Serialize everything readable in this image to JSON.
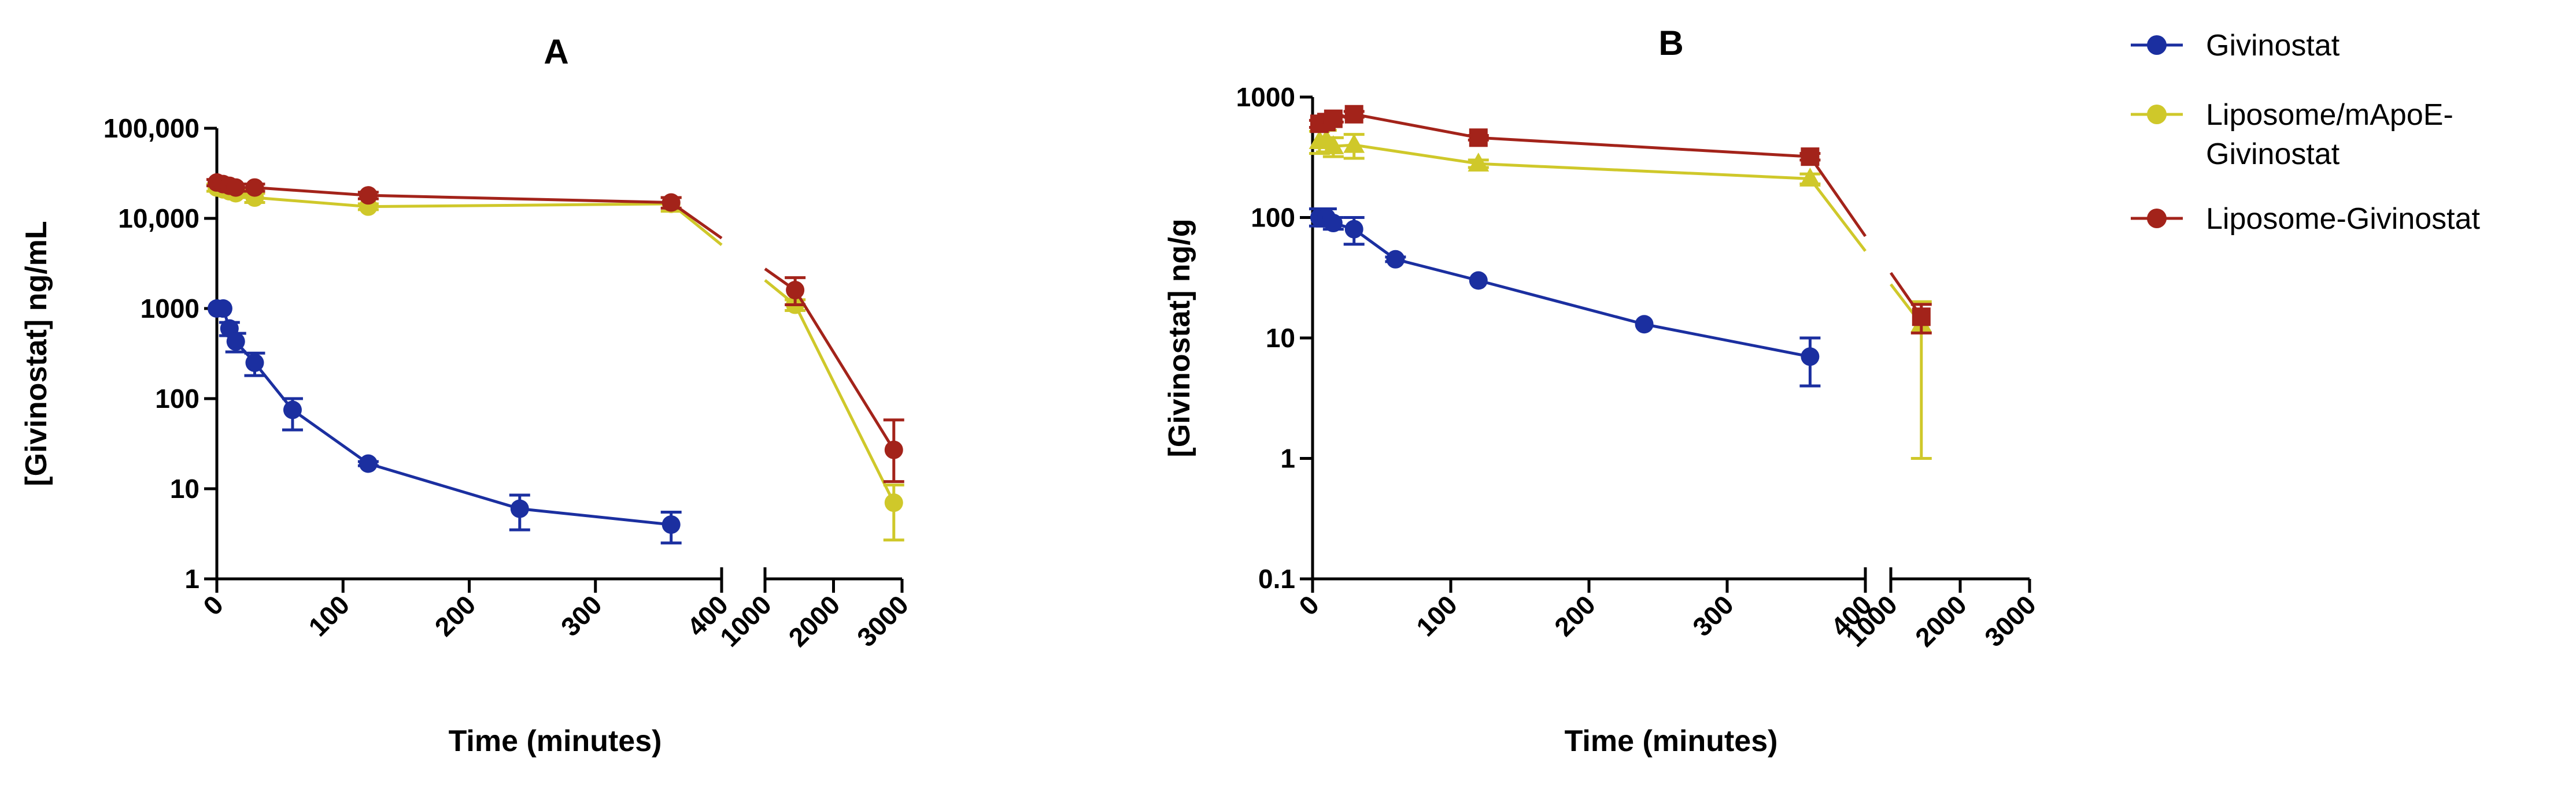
{
  "chart_data": [
    {
      "panel": "A",
      "type": "line",
      "title": "A",
      "xlabel": "Time (minutes)",
      "ylabel": "[Givinostat] ng/mL",
      "yscale": "log",
      "ylim": [
        1,
        100000
      ],
      "yticks": [
        1,
        10,
        100,
        1000,
        10000,
        100000
      ],
      "ytick_labels": [
        "1",
        "10",
        "100",
        "1000",
        "10,000",
        "100,000"
      ],
      "x_segments": [
        {
          "xlim": [
            0,
            400
          ],
          "ticks": [
            0,
            100,
            200,
            300,
            400
          ],
          "tick_labels": [
            "0",
            "100",
            "200",
            "300",
            "400"
          ]
        },
        {
          "xlim": [
            1000,
            3000
          ],
          "ticks": [
            1000,
            2000,
            3000
          ],
          "tick_labels": [
            "1000",
            "2000",
            "3000"
          ]
        }
      ],
      "series": [
        {
          "name": "Givinostat",
          "color": "#1b2fa0",
          "marker": "circle",
          "points": [
            {
              "x": 0,
              "y": 1000,
              "err_low": 1000,
              "err_high": 1000
            },
            {
              "x": 5,
              "y": 1000,
              "err_low": 980,
              "err_high": 1020
            },
            {
              "x": 10,
              "y": 600,
              "err_low": 500,
              "err_high": 700
            },
            {
              "x": 15,
              "y": 430,
              "err_low": 330,
              "err_high": 530
            },
            {
              "x": 30,
              "y": 250,
              "err_low": 180,
              "err_high": 320
            },
            {
              "x": 60,
              "y": 75,
              "err_low": 45,
              "err_high": 100
            },
            {
              "x": 120,
              "y": 19,
              "err_low": 18,
              "err_high": 20
            },
            {
              "x": 240,
              "y": 6,
              "err_low": 3.5,
              "err_high": 8.5
            },
            {
              "x": 360,
              "y": 4,
              "err_low": 2.5,
              "err_high": 5.5
            }
          ]
        },
        {
          "name": "Liposome/mApoE-Givinostat",
          "color": "#cfc82a",
          "marker": "circle",
          "points": [
            {
              "x": 0,
              "y": 22000,
              "err_low": 20000,
              "err_high": 24000
            },
            {
              "x": 5,
              "y": 21000,
              "err_low": 19000,
              "err_high": 23000
            },
            {
              "x": 10,
              "y": 20000,
              "err_low": 18000,
              "err_high": 22000
            },
            {
              "x": 15,
              "y": 19000,
              "err_low": 17000,
              "err_high": 21000
            },
            {
              "x": 30,
              "y": 17000,
              "err_low": 15000,
              "err_high": 19000
            },
            {
              "x": 120,
              "y": 13500,
              "err_low": 12500,
              "err_high": 14500
            },
            {
              "x": 360,
              "y": 14500,
              "err_low": 12000,
              "err_high": 17000
            },
            {
              "x": 1440,
              "y": 1100,
              "err_low": 950,
              "err_high": 1250
            },
            {
              "x": 2880,
              "y": 7,
              "err_low": 2.7,
              "err_high": 11
            }
          ]
        },
        {
          "name": "Liposome-Givinostat",
          "color": "#a3231a",
          "marker": "circle",
          "points": [
            {
              "x": 0,
              "y": 25000,
              "err_low": 23000,
              "err_high": 27000
            },
            {
              "x": 5,
              "y": 24000,
              "err_low": 22000,
              "err_high": 26000
            },
            {
              "x": 10,
              "y": 23000,
              "err_low": 21000,
              "err_high": 25000
            },
            {
              "x": 15,
              "y": 22000,
              "err_low": 20000,
              "err_high": 24000
            },
            {
              "x": 30,
              "y": 22000,
              "err_low": 20000,
              "err_high": 24000
            },
            {
              "x": 120,
              "y": 18000,
              "err_low": 16500,
              "err_high": 19500
            },
            {
              "x": 360,
              "y": 15000,
              "err_low": 13000,
              "err_high": 17000
            },
            {
              "x": 1440,
              "y": 1600,
              "err_low": 1100,
              "err_high": 2200
            },
            {
              "x": 2880,
              "y": 27,
              "err_low": 12,
              "err_high": 58
            }
          ]
        }
      ]
    },
    {
      "panel": "B",
      "type": "line",
      "title": "B",
      "xlabel": "Time (minutes)",
      "ylabel": "[Givinostat] ng/g",
      "yscale": "log",
      "ylim": [
        0.1,
        1000
      ],
      "yticks": [
        0.1,
        1,
        10,
        100,
        1000
      ],
      "ytick_labels": [
        "0.1",
        "1",
        "10",
        "100",
        "1000"
      ],
      "x_segments": [
        {
          "xlim": [
            0,
            400
          ],
          "ticks": [
            0,
            100,
            200,
            300,
            400
          ],
          "tick_labels": [
            "0",
            "100",
            "200",
            "300",
            "400"
          ]
        },
        {
          "xlim": [
            1000,
            3000
          ],
          "ticks": [
            1000,
            2000,
            3000
          ],
          "tick_labels": [
            "1000",
            "2000",
            "3000"
          ]
        }
      ],
      "series": [
        {
          "name": "Givinostat",
          "color": "#1b2fa0",
          "marker": "circle",
          "points": [
            {
              "x": 5,
              "y": 100,
              "err_low": 85,
              "err_high": 118
            },
            {
              "x": 10,
              "y": 100,
              "err_low": 85,
              "err_high": 118
            },
            {
              "x": 15,
              "y": 90,
              "err_low": 80,
              "err_high": 100
            },
            {
              "x": 30,
              "y": 80,
              "err_low": 60,
              "err_high": 100
            },
            {
              "x": 60,
              "y": 45,
              "err_low": 43,
              "err_high": 47
            },
            {
              "x": 120,
              "y": 30,
              "err_low": 29,
              "err_high": 31
            },
            {
              "x": 240,
              "y": 13,
              "err_low": 12.5,
              "err_high": 13.5
            },
            {
              "x": 360,
              "y": 7,
              "err_low": 4,
              "err_high": 10
            }
          ]
        },
        {
          "name": "Liposome/mApoE-Givinostat",
          "color": "#cfc82a",
          "marker": "triangle",
          "points": [
            {
              "x": 5,
              "y": 430,
              "err_low": 340,
              "err_high": 520
            },
            {
              "x": 10,
              "y": 440,
              "err_low": 350,
              "err_high": 530
            },
            {
              "x": 15,
              "y": 390,
              "err_low": 320,
              "err_high": 460
            },
            {
              "x": 30,
              "y": 400,
              "err_low": 310,
              "err_high": 490
            },
            {
              "x": 120,
              "y": 280,
              "err_low": 260,
              "err_high": 300
            },
            {
              "x": 360,
              "y": 210,
              "err_low": 190,
              "err_high": 230
            },
            {
              "x": 1440,
              "y": 13,
              "err_low": 1,
              "err_high": 20
            }
          ]
        },
        {
          "name": "Liposome-Givinostat",
          "color": "#a3231a",
          "marker": "square",
          "points": [
            {
              "x": 5,
              "y": 600,
              "err_low": 560,
              "err_high": 640
            },
            {
              "x": 10,
              "y": 620,
              "err_low": 580,
              "err_high": 660
            },
            {
              "x": 15,
              "y": 660,
              "err_low": 620,
              "err_high": 700
            },
            {
              "x": 30,
              "y": 720,
              "err_low": 680,
              "err_high": 760
            },
            {
              "x": 120,
              "y": 460,
              "err_low": 440,
              "err_high": 480
            },
            {
              "x": 360,
              "y": 320,
              "err_low": 300,
              "err_high": 340
            },
            {
              "x": 1440,
              "y": 15,
              "err_low": 11,
              "err_high": 19
            }
          ]
        }
      ]
    }
  ],
  "legend": {
    "items": [
      {
        "label_lines": [
          "Givinostat"
        ],
        "color": "#1b2fa0"
      },
      {
        "label_lines": [
          "Liposome/mApoE-",
          "Givinostat"
        ],
        "color": "#cfc82a"
      },
      {
        "label_lines": [
          "Liposome-Givinostat"
        ],
        "color": "#a3231a"
      }
    ]
  }
}
